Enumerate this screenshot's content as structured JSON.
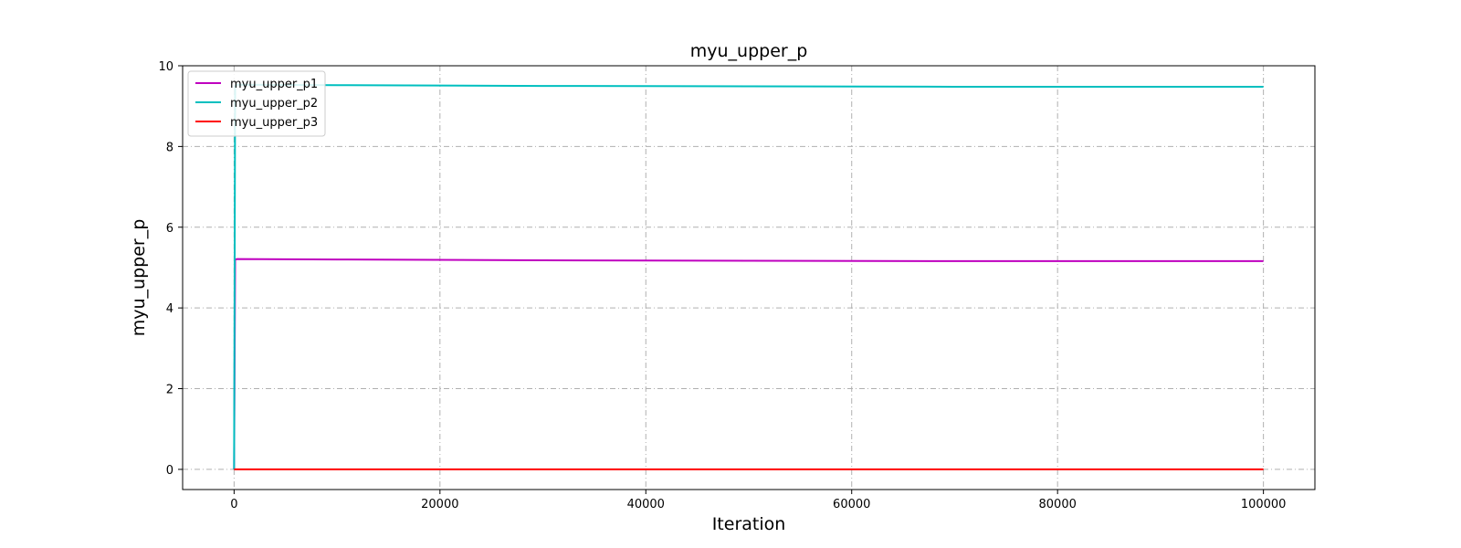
{
  "chart_data": {
    "type": "line",
    "title": "myu_upper_p",
    "xlabel": "Iteration",
    "ylabel": "myu_upper_p",
    "xlim": [
      -5000,
      105000
    ],
    "ylim": [
      -0.5,
      10
    ],
    "xticks": [
      0,
      20000,
      40000,
      60000,
      80000,
      100000
    ],
    "yticks": [
      0,
      2,
      4,
      6,
      8,
      10
    ],
    "grid": true,
    "legend_position": "top-left",
    "series": [
      {
        "name": "myu_upper_p1",
        "color": "#bf00bf",
        "x": [
          0,
          100,
          300,
          10000,
          30000,
          50000,
          70000,
          100000
        ],
        "y": [
          0,
          5.2,
          5.21,
          5.2,
          5.18,
          5.17,
          5.16,
          5.16
        ]
      },
      {
        "name": "myu_upper_p2",
        "color": "#00bfbf",
        "x": [
          0,
          100,
          300,
          10000,
          30000,
          50000,
          70000,
          100000
        ],
        "y": [
          0,
          9.5,
          9.53,
          9.52,
          9.5,
          9.49,
          9.48,
          9.48
        ]
      },
      {
        "name": "myu_upper_p3",
        "color": "#ff0000",
        "x": [
          0,
          100000
        ],
        "y": [
          0,
          0
        ]
      }
    ]
  }
}
